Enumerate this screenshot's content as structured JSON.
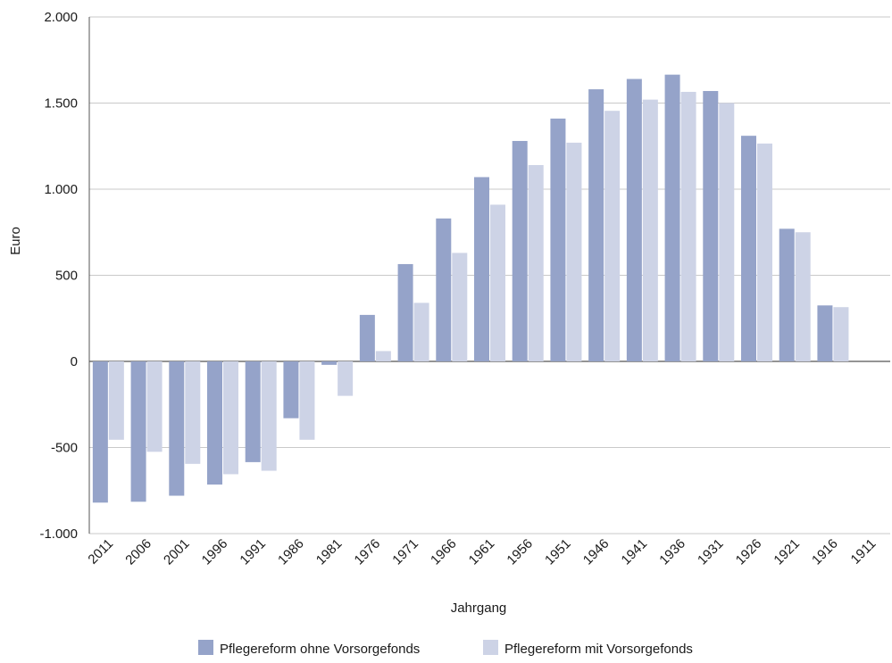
{
  "chart_data": {
    "type": "bar",
    "ylabel": "Euro",
    "xlabel": "Jahrgang",
    "ylim": [
      -1000,
      2000
    ],
    "yticks": [
      2000,
      1500,
      1000,
      500,
      0,
      -500,
      -1000
    ],
    "ytick_labels": [
      "2.000",
      "1.500",
      "1.000",
      "500",
      "0",
      "-500",
      "-1.000"
    ],
    "grid": true,
    "legend_position": "bottom",
    "categories": [
      "2011",
      "2006",
      "2001",
      "1996",
      "1991",
      "1986",
      "1981",
      "1976",
      "1971",
      "1966",
      "1961",
      "1956",
      "1951",
      "1946",
      "1941",
      "1936",
      "1931",
      "1926",
      "1921",
      "1916",
      "1911"
    ],
    "series": [
      {
        "name": "Pflegereform ohne Vorsorgefonds",
        "color": "#95a3c9",
        "values": [
          -820,
          -815,
          -780,
          -715,
          -585,
          -330,
          -20,
          270,
          565,
          830,
          1070,
          1280,
          1410,
          1580,
          1640,
          1665,
          1570,
          1310,
          770,
          325,
          null
        ]
      },
      {
        "name": "Pflegereform mit Vorsorgefonds",
        "color": "#cdd3e6",
        "values": [
          -455,
          -525,
          -595,
          -655,
          -635,
          -455,
          -200,
          60,
          340,
          630,
          910,
          1140,
          1270,
          1455,
          1520,
          1565,
          1500,
          1265,
          750,
          315,
          null
        ]
      }
    ]
  }
}
